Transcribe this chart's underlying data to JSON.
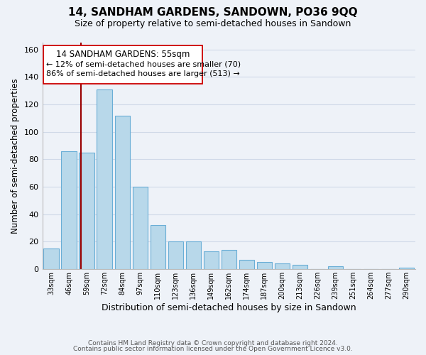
{
  "title": "14, SANDHAM GARDENS, SANDOWN, PO36 9QQ",
  "subtitle": "Size of property relative to semi-detached houses in Sandown",
  "xlabel": "Distribution of semi-detached houses by size in Sandown",
  "ylabel": "Number of semi-detached properties",
  "categories": [
    "33sqm",
    "46sqm",
    "59sqm",
    "72sqm",
    "84sqm",
    "97sqm",
    "110sqm",
    "123sqm",
    "136sqm",
    "149sqm",
    "162sqm",
    "174sqm",
    "187sqm",
    "200sqm",
    "213sqm",
    "226sqm",
    "239sqm",
    "251sqm",
    "264sqm",
    "277sqm",
    "290sqm"
  ],
  "values": [
    15,
    86,
    85,
    131,
    112,
    60,
    32,
    20,
    20,
    13,
    14,
    7,
    5,
    4,
    3,
    0,
    2,
    0,
    0,
    0,
    1
  ],
  "bar_color": "#b8d8ea",
  "bar_edge_color": "#6aaed6",
  "grid_color": "#d0d9e8",
  "background_color": "#eef2f8",
  "property_label": "14 SANDHAM GARDENS: 55sqm",
  "smaller_pct": 12,
  "smaller_count": 70,
  "larger_pct": 86,
  "larger_count": 513,
  "vline_color": "#990000",
  "annotation_box_edge": "#cc0000",
  "ylim": [
    0,
    165
  ],
  "footer1": "Contains HM Land Registry data © Crown copyright and database right 2024.",
  "footer2": "Contains public sector information licensed under the Open Government Licence v3.0."
}
